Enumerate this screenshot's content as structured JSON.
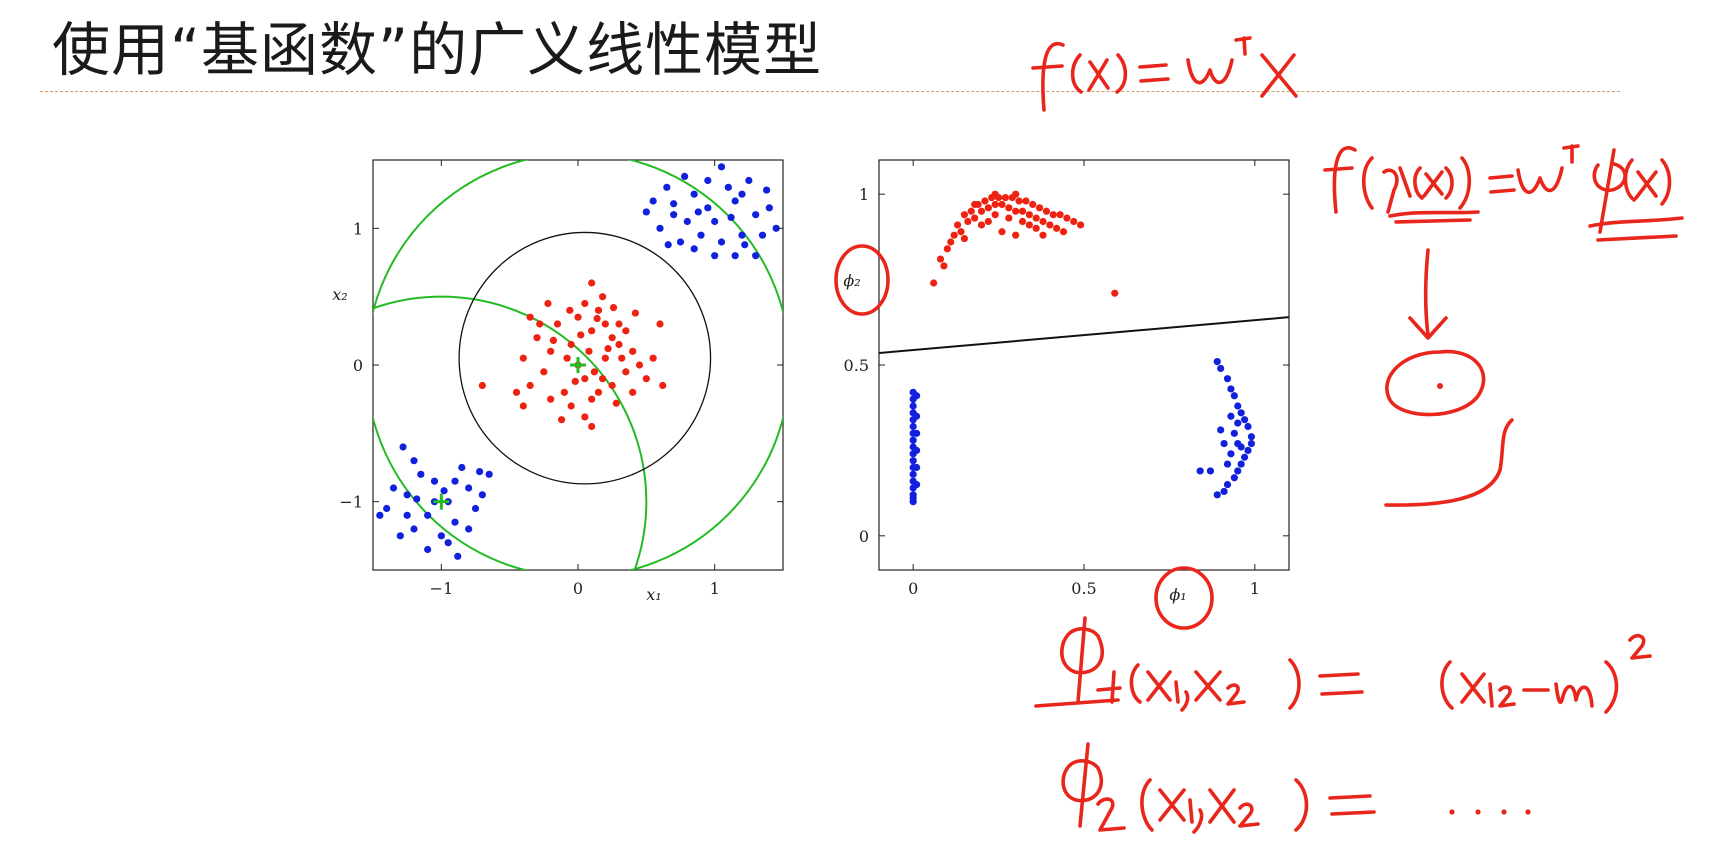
{
  "slide": {
    "title": "使用“基函数”的广义线性模型"
  },
  "colors": {
    "class_red": "#ee2211",
    "class_blue": "#1020dd",
    "rbf_circle": "#22bb22",
    "boundary": "#111111",
    "annotation_ink": "#e8261c",
    "title_rule": "#d89a5a"
  },
  "chart_data": [
    {
      "type": "scatter",
      "title": "",
      "xlabel": "x₁",
      "ylabel": "x₂",
      "xlim": [
        -1.5,
        1.5
      ],
      "ylim": [
        -1.5,
        1.5
      ],
      "x_ticks": [
        {
          "value": -1,
          "label": "−1"
        },
        {
          "value": 0,
          "label": "0"
        },
        {
          "value": 1,
          "label": "1"
        }
      ],
      "y_ticks": [
        {
          "value": -1,
          "label": "−1"
        },
        {
          "value": 0,
          "label": "0"
        },
        {
          "value": 1,
          "label": "1"
        }
      ],
      "grid": false,
      "series": [
        {
          "color": "red",
          "points": [
            [
              -0.05,
              0.15
            ],
            [
              0.1,
              0.25
            ],
            [
              0.2,
              0.05
            ],
            [
              -0.2,
              0.1
            ],
            [
              0.05,
              -0.1
            ],
            [
              -0.1,
              -0.2
            ],
            [
              0.25,
              -0.15
            ],
            [
              0.3,
              0.15
            ],
            [
              -0.25,
              -0.05
            ],
            [
              0.0,
              0.35
            ],
            [
              0.15,
              0.4
            ],
            [
              -0.3,
              0.2
            ],
            [
              0.35,
              -0.05
            ],
            [
              -0.15,
              0.3
            ],
            [
              0.1,
              -0.25
            ],
            [
              0.2,
              0.3
            ],
            [
              -0.05,
              -0.3
            ],
            [
              0.4,
              0.1
            ],
            [
              -0.35,
              -0.15
            ],
            [
              0.05,
              0.45
            ],
            [
              0.3,
              0.3
            ],
            [
              -0.2,
              -0.25
            ],
            [
              0.15,
              -0.2
            ],
            [
              0.45,
              0.0
            ],
            [
              -0.4,
              0.05
            ],
            [
              0.0,
              0.0
            ],
            [
              0.08,
              0.1
            ],
            [
              -0.08,
              0.05
            ],
            [
              0.12,
              -0.05
            ],
            [
              0.25,
              0.2
            ],
            [
              -0.28,
              0.3
            ],
            [
              0.18,
              0.5
            ],
            [
              0.35,
              0.25
            ],
            [
              0.5,
              -0.1
            ],
            [
              0.4,
              -0.2
            ],
            [
              -0.12,
              -0.4
            ],
            [
              0.1,
              -0.45
            ],
            [
              -0.22,
              0.45
            ],
            [
              0.02,
              0.22
            ],
            [
              0.28,
              -0.28
            ],
            [
              -0.35,
              0.35
            ],
            [
              -0.45,
              -0.2
            ],
            [
              0.6,
              0.3
            ],
            [
              0.55,
              0.05
            ],
            [
              -0.7,
              -0.15
            ],
            [
              0.1,
              0.6
            ],
            [
              -0.02,
              -0.12
            ],
            [
              0.22,
              0.12
            ],
            [
              0.32,
              0.05
            ],
            [
              -0.18,
              0.18
            ],
            [
              0.14,
              0.34
            ],
            [
              0.05,
              -0.38
            ],
            [
              0.42,
              0.38
            ],
            [
              -0.4,
              -0.3
            ],
            [
              0.62,
              -0.15
            ],
            [
              0.18,
              -0.1
            ],
            [
              -0.06,
              0.4
            ],
            [
              0.26,
              0.42
            ]
          ]
        },
        {
          "color": "blue",
          "points": [
            [
              0.55,
              1.2
            ],
            [
              0.7,
              1.1
            ],
            [
              0.85,
              1.25
            ],
            [
              1.0,
              1.05
            ],
            [
              1.15,
              1.2
            ],
            [
              1.3,
              1.1
            ],
            [
              0.9,
              0.95
            ],
            [
              1.05,
              0.9
            ],
            [
              1.2,
              0.95
            ],
            [
              0.75,
              0.9
            ],
            [
              0.65,
              1.3
            ],
            [
              0.95,
              1.35
            ],
            [
              1.1,
              1.3
            ],
            [
              1.25,
              1.35
            ],
            [
              1.4,
              1.15
            ],
            [
              0.8,
              1.05
            ],
            [
              1.35,
              0.95
            ],
            [
              1.0,
              0.8
            ],
            [
              1.15,
              0.8
            ],
            [
              0.6,
              1.0
            ],
            [
              0.85,
              0.85
            ],
            [
              1.3,
              0.8
            ],
            [
              0.7,
              1.18
            ],
            [
              1.45,
              1.0
            ],
            [
              0.95,
              1.15
            ],
            [
              1.05,
              1.45
            ],
            [
              1.2,
              1.25
            ],
            [
              0.5,
              1.12
            ],
            [
              0.78,
              1.38
            ],
            [
              1.12,
              1.08
            ],
            [
              1.38,
              1.28
            ],
            [
              0.88,
              1.12
            ],
            [
              1.22,
              0.88
            ],
            [
              0.66,
              0.88
            ],
            [
              -1.4,
              -1.05
            ],
            [
              -1.25,
              -0.95
            ],
            [
              -1.1,
              -1.1
            ],
            [
              -0.95,
              -1.0
            ],
            [
              -0.8,
              -0.9
            ],
            [
              -1.2,
              -1.2
            ],
            [
              -1.05,
              -0.85
            ],
            [
              -0.9,
              -1.15
            ],
            [
              -1.3,
              -1.25
            ],
            [
              -0.75,
              -1.05
            ],
            [
              -1.15,
              -0.8
            ],
            [
              -1.0,
              -1.25
            ],
            [
              -0.85,
              -0.75
            ],
            [
              -0.7,
              -0.95
            ],
            [
              -1.35,
              -0.9
            ],
            [
              -1.2,
              -0.7
            ],
            [
              -0.95,
              -1.3
            ],
            [
              -0.65,
              -0.8
            ],
            [
              -1.1,
              -1.35
            ],
            [
              -0.8,
              -1.2
            ],
            [
              -1.45,
              -1.1
            ],
            [
              -1.05,
              -1.0
            ],
            [
              -0.9,
              -0.85
            ],
            [
              -1.25,
              -1.1
            ],
            [
              -0.72,
              -0.78
            ],
            [
              -1.18,
              -0.98
            ],
            [
              -0.98,
              -0.92
            ],
            [
              -1.28,
              -0.6
            ],
            [
              -0.88,
              -1.4
            ]
          ]
        }
      ],
      "basis_centers": [
        [
          -1,
          -1
        ],
        [
          0,
          0
        ]
      ],
      "basis_circles": [
        {
          "center": [
            0,
            0
          ],
          "radius": 1.55
        },
        {
          "center": [
            -1,
            -1
          ],
          "radius": 1.5
        }
      ],
      "decision_boundary": {
        "center": [
          0.05,
          0.05
        ],
        "radius": 0.92
      }
    },
    {
      "type": "scatter",
      "title": "",
      "xlabel": "ϕ₁",
      "ylabel": "ϕ₂",
      "xlim": [
        -0.1,
        1.1
      ],
      "ylim": [
        -0.1,
        1.1
      ],
      "x_ticks": [
        {
          "value": 0,
          "label": "0"
        },
        {
          "value": 0.5,
          "label": "0.5"
        },
        {
          "value": 1,
          "label": "1"
        }
      ],
      "y_ticks": [
        {
          "value": 0,
          "label": "0"
        },
        {
          "value": 0.5,
          "label": "0.5"
        },
        {
          "value": 1,
          "label": "1"
        }
      ],
      "grid": false,
      "series": [
        {
          "color": "red",
          "points": [
            [
              0.06,
              0.74
            ],
            [
              0.08,
              0.81
            ],
            [
              0.1,
              0.84
            ],
            [
              0.12,
              0.88
            ],
            [
              0.13,
              0.91
            ],
            [
              0.15,
              0.94
            ],
            [
              0.17,
              0.95
            ],
            [
              0.19,
              0.97
            ],
            [
              0.21,
              0.98
            ],
            [
              0.23,
              0.99
            ],
            [
              0.25,
              0.99
            ],
            [
              0.27,
              0.99
            ],
            [
              0.29,
              0.99
            ],
            [
              0.31,
              0.98
            ],
            [
              0.33,
              0.98
            ],
            [
              0.35,
              0.97
            ],
            [
              0.37,
              0.96
            ],
            [
              0.39,
              0.95
            ],
            [
              0.41,
              0.94
            ],
            [
              0.43,
              0.94
            ],
            [
              0.45,
              0.93
            ],
            [
              0.47,
              0.92
            ],
            [
              0.49,
              0.91
            ],
            [
              0.14,
              0.89
            ],
            [
              0.16,
              0.92
            ],
            [
              0.18,
              0.93
            ],
            [
              0.2,
              0.95
            ],
            [
              0.22,
              0.96
            ],
            [
              0.24,
              0.97
            ],
            [
              0.26,
              0.97
            ],
            [
              0.28,
              0.96
            ],
            [
              0.3,
              0.95
            ],
            [
              0.32,
              0.95
            ],
            [
              0.34,
              0.94
            ],
            [
              0.36,
              0.93
            ],
            [
              0.38,
              0.92
            ],
            [
              0.4,
              0.91
            ],
            [
              0.42,
              0.9
            ],
            [
              0.2,
              0.91
            ],
            [
              0.24,
              0.94
            ],
            [
              0.28,
              0.93
            ],
            [
              0.32,
              0.92
            ],
            [
              0.36,
              0.9
            ],
            [
              0.26,
              0.89
            ],
            [
              0.3,
              0.88
            ],
            [
              0.11,
              0.86
            ],
            [
              0.09,
              0.79
            ],
            [
              0.22,
              0.92
            ],
            [
              0.34,
              0.91
            ],
            [
              0.44,
              0.89
            ],
            [
              0.59,
              0.71
            ],
            [
              0.18,
              0.97
            ],
            [
              0.24,
              1.0
            ],
            [
              0.3,
              1.0
            ],
            [
              0.15,
              0.87
            ],
            [
              0.38,
              0.88
            ]
          ]
        },
        {
          "color": "blue",
          "points": [
            [
              0.0,
              0.1
            ],
            [
              0.0,
              0.12
            ],
            [
              0.0,
              0.14
            ],
            [
              0.0,
              0.16
            ],
            [
              0.0,
              0.18
            ],
            [
              0.0,
              0.2
            ],
            [
              0.0,
              0.22
            ],
            [
              0.0,
              0.24
            ],
            [
              0.0,
              0.26
            ],
            [
              0.0,
              0.28
            ],
            [
              0.0,
              0.3
            ],
            [
              0.0,
              0.32
            ],
            [
              0.0,
              0.34
            ],
            [
              0.0,
              0.36
            ],
            [
              0.0,
              0.38
            ],
            [
              0.0,
              0.4
            ],
            [
              0.0,
              0.42
            ],
            [
              0.01,
              0.15
            ],
            [
              0.01,
              0.25
            ],
            [
              0.01,
              0.35
            ],
            [
              0.01,
              0.41
            ],
            [
              0.0,
              0.11
            ],
            [
              0.01,
              0.2
            ],
            [
              0.01,
              0.3
            ],
            [
              0.89,
              0.51
            ],
            [
              0.9,
              0.49
            ],
            [
              0.92,
              0.46
            ],
            [
              0.93,
              0.43
            ],
            [
              0.94,
              0.41
            ],
            [
              0.95,
              0.38
            ],
            [
              0.96,
              0.36
            ],
            [
              0.97,
              0.34
            ],
            [
              0.98,
              0.32
            ],
            [
              0.99,
              0.29
            ],
            [
              0.99,
              0.27
            ],
            [
              0.98,
              0.25
            ],
            [
              0.97,
              0.23
            ],
            [
              0.96,
              0.21
            ],
            [
              0.95,
              0.19
            ],
            [
              0.94,
              0.17
            ],
            [
              0.92,
              0.15
            ],
            [
              0.91,
              0.13
            ],
            [
              0.93,
              0.35
            ],
            [
              0.94,
              0.3
            ],
            [
              0.95,
              0.27
            ],
            [
              0.96,
              0.26
            ],
            [
              0.93,
              0.24
            ],
            [
              0.92,
              0.21
            ],
            [
              0.9,
              0.31
            ],
            [
              0.91,
              0.27
            ],
            [
              0.87,
              0.19
            ],
            [
              0.84,
              0.19
            ],
            [
              0.89,
              0.12
            ],
            [
              0.95,
              0.33
            ]
          ]
        }
      ],
      "decision_boundary": {
        "type": "line",
        "from": [
          -0.1,
          0.535
        ],
        "to": [
          1.1,
          0.64
        ]
      }
    }
  ]
}
